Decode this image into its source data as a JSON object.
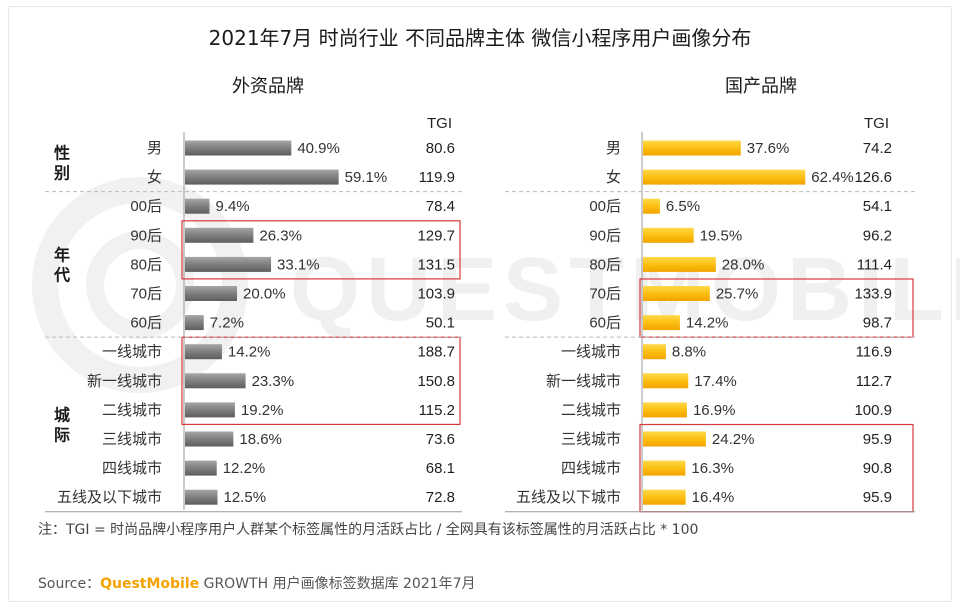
{
  "title": "2021年7月 时尚行业 不同品牌主体 微信小程序用户画像分布",
  "watermark_text": "QUESTMOBILE",
  "colors": {
    "foreign_bar": "#7f7f7f",
    "domestic_bar": "#fcbf12",
    "highlight_box": "#d9383a",
    "divider": "#bbbbbb"
  },
  "tgi_header": "TGI",
  "groups": [
    {
      "label": "性别",
      "rows": [
        0,
        1
      ]
    },
    {
      "label": "年代",
      "rows": [
        2,
        6
      ]
    },
    {
      "label": "城际",
      "rows": [
        7,
        12
      ]
    }
  ],
  "highlight_boxes": {
    "foreign": [
      [
        3,
        4
      ],
      [
        7,
        9
      ]
    ],
    "domestic": [
      [
        5,
        6
      ],
      [
        10,
        12
      ]
    ]
  },
  "chart_data": [
    {
      "type": "bar",
      "orientation": "horizontal",
      "title": "外资品牌",
      "categories": [
        "男",
        "女",
        "00后",
        "90后",
        "80后",
        "70后",
        "60后",
        "一线城市",
        "新一线城市",
        "二线城市",
        "三线城市",
        "四线城市",
        "五线及以下城市"
      ],
      "values": [
        40.9,
        59.1,
        9.4,
        26.3,
        33.1,
        20.0,
        7.2,
        14.2,
        23.3,
        19.2,
        18.6,
        12.2,
        12.5
      ],
      "labels": [
        "40.9%",
        "59.1%",
        "9.4%",
        "26.3%",
        "33.1%",
        "20.0%",
        "7.2%",
        "14.2%",
        "23.3%",
        "19.2%",
        "18.6%",
        "12.2%",
        "12.5%"
      ],
      "tgi": [
        "80.6",
        "119.9",
        "78.4",
        "129.7",
        "131.5",
        "103.9",
        "50.1",
        "188.7",
        "150.8",
        "115.2",
        "73.6",
        "68.1",
        "72.8"
      ],
      "unit": "%",
      "xlim": [
        0,
        100
      ]
    },
    {
      "type": "bar",
      "orientation": "horizontal",
      "title": "国产品牌",
      "categories": [
        "男",
        "女",
        "00后",
        "90后",
        "80后",
        "70后",
        "60后",
        "一线城市",
        "新一线城市",
        "二线城市",
        "三线城市",
        "四线城市",
        "五线及以下城市"
      ],
      "values": [
        37.6,
        62.4,
        6.5,
        19.5,
        28.0,
        25.7,
        14.2,
        8.8,
        17.4,
        16.9,
        24.2,
        16.3,
        16.4
      ],
      "labels": [
        "37.6%",
        "62.4%",
        "6.5%",
        "19.5%",
        "28.0%",
        "25.7%",
        "14.2%",
        "8.8%",
        "17.4%",
        "16.9%",
        "24.2%",
        "16.3%",
        "16.4%"
      ],
      "tgi": [
        "74.2",
        "126.6",
        "54.1",
        "96.2",
        "111.4",
        "133.9",
        "98.7",
        "116.9",
        "112.7",
        "100.9",
        "95.9",
        "90.8",
        "95.9"
      ],
      "unit": "%",
      "xlim": [
        0,
        100
      ]
    }
  ],
  "note": "注：TGI = 时尚品牌小程序用户人群某个标签属性的月活跃占比 / 全网具有该标签属性的月活跃占比 * 100",
  "source": {
    "prefix": "Source：",
    "brand": "QuestMobile",
    "rest": " GROWTH 用户画像标签数据库 2021年7月"
  }
}
